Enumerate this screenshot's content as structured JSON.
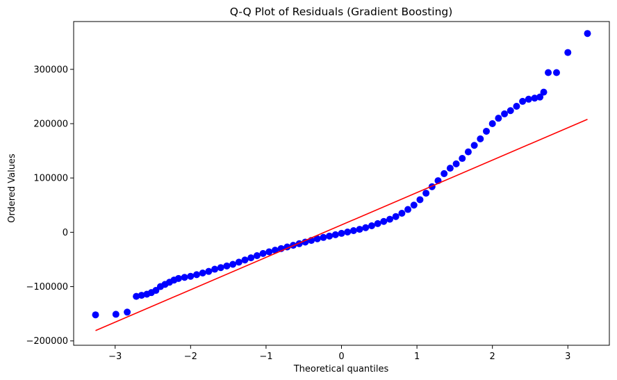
{
  "chart_data": {
    "type": "scatter",
    "title": "Q-Q Plot of Residuals (Gradient Boosting)",
    "xlabel": "Theoretical quantiles",
    "ylabel": "Ordered Values",
    "xlim": [
      -3.55,
      3.55
    ],
    "ylim": [
      -208000,
      388000
    ],
    "x_ticks": [
      -3,
      -2,
      -1,
      0,
      1,
      2,
      3
    ],
    "x_tick_labels": [
      "−3",
      "−2",
      "−1",
      "0",
      "1",
      "2",
      "3"
    ],
    "y_ticks": [
      -200000,
      -100000,
      0,
      100000,
      200000,
      300000
    ],
    "y_tick_labels": [
      "−200000",
      "−100000",
      "0",
      "100000",
      "200000",
      "300000"
    ],
    "grid": false,
    "colors": {
      "points": "#0000ff",
      "fit_line": "#ff0000"
    },
    "points": [
      [
        -3.26,
        -152000
      ],
      [
        -2.99,
        -151000
      ],
      [
        -2.84,
        -147000
      ],
      [
        -2.72,
        -118000
      ],
      [
        -2.65,
        -116000
      ],
      [
        -2.58,
        -114000
      ],
      [
        -2.52,
        -111000
      ],
      [
        -2.46,
        -107000
      ],
      [
        -2.4,
        -100000
      ],
      [
        -2.34,
        -96000
      ],
      [
        -2.28,
        -92000
      ],
      [
        -2.22,
        -88000
      ],
      [
        -2.16,
        -85000
      ],
      [
        -2.08,
        -83000
      ],
      [
        -2.0,
        -81000
      ],
      [
        -1.92,
        -78000
      ],
      [
        -1.84,
        -75000
      ],
      [
        -1.76,
        -72000
      ],
      [
        -1.68,
        -68000
      ],
      [
        -1.6,
        -65000
      ],
      [
        -1.52,
        -62000
      ],
      [
        -1.44,
        -59000
      ],
      [
        -1.36,
        -55000
      ],
      [
        -1.28,
        -51000
      ],
      [
        -1.2,
        -47000
      ],
      [
        -1.12,
        -43000
      ],
      [
        -1.04,
        -39000
      ],
      [
        -0.96,
        -36000
      ],
      [
        -0.88,
        -33000
      ],
      [
        -0.8,
        -30000
      ],
      [
        -0.72,
        -27000
      ],
      [
        -0.64,
        -24000
      ],
      [
        -0.56,
        -21000
      ],
      [
        -0.48,
        -18000
      ],
      [
        -0.4,
        -15000
      ],
      [
        -0.32,
        -12000
      ],
      [
        -0.24,
        -9500
      ],
      [
        -0.16,
        -7000
      ],
      [
        -0.08,
        -4500
      ],
      [
        0.0,
        -2000
      ],
      [
        0.08,
        500
      ],
      [
        0.16,
        3000
      ],
      [
        0.24,
        5500
      ],
      [
        0.32,
        8500
      ],
      [
        0.4,
        12000
      ],
      [
        0.48,
        16000
      ],
      [
        0.56,
        20000
      ],
      [
        0.64,
        24000
      ],
      [
        0.72,
        29000
      ],
      [
        0.8,
        35000
      ],
      [
        0.88,
        42000
      ],
      [
        0.96,
        50000
      ],
      [
        1.04,
        60000
      ],
      [
        1.12,
        72000
      ],
      [
        1.2,
        84000
      ],
      [
        1.28,
        95000
      ],
      [
        1.36,
        108000
      ],
      [
        1.44,
        118000
      ],
      [
        1.52,
        126000
      ],
      [
        1.6,
        136000
      ],
      [
        1.68,
        148000
      ],
      [
        1.76,
        160000
      ],
      [
        1.84,
        172000
      ],
      [
        1.92,
        186000
      ],
      [
        2.0,
        200000
      ],
      [
        2.08,
        210000
      ],
      [
        2.16,
        218000
      ],
      [
        2.24,
        224000
      ],
      [
        2.32,
        232000
      ],
      [
        2.4,
        241000
      ],
      [
        2.48,
        245000
      ],
      [
        2.56,
        247000
      ],
      [
        2.63,
        249000
      ],
      [
        2.68,
        258000
      ],
      [
        2.74,
        294000
      ],
      [
        2.85,
        294000
      ],
      [
        3.0,
        331000
      ],
      [
        3.26,
        366000
      ]
    ],
    "fit_line": {
      "x": [
        -3.26,
        3.26
      ],
      "y": [
        -181000,
        208000
      ]
    }
  }
}
